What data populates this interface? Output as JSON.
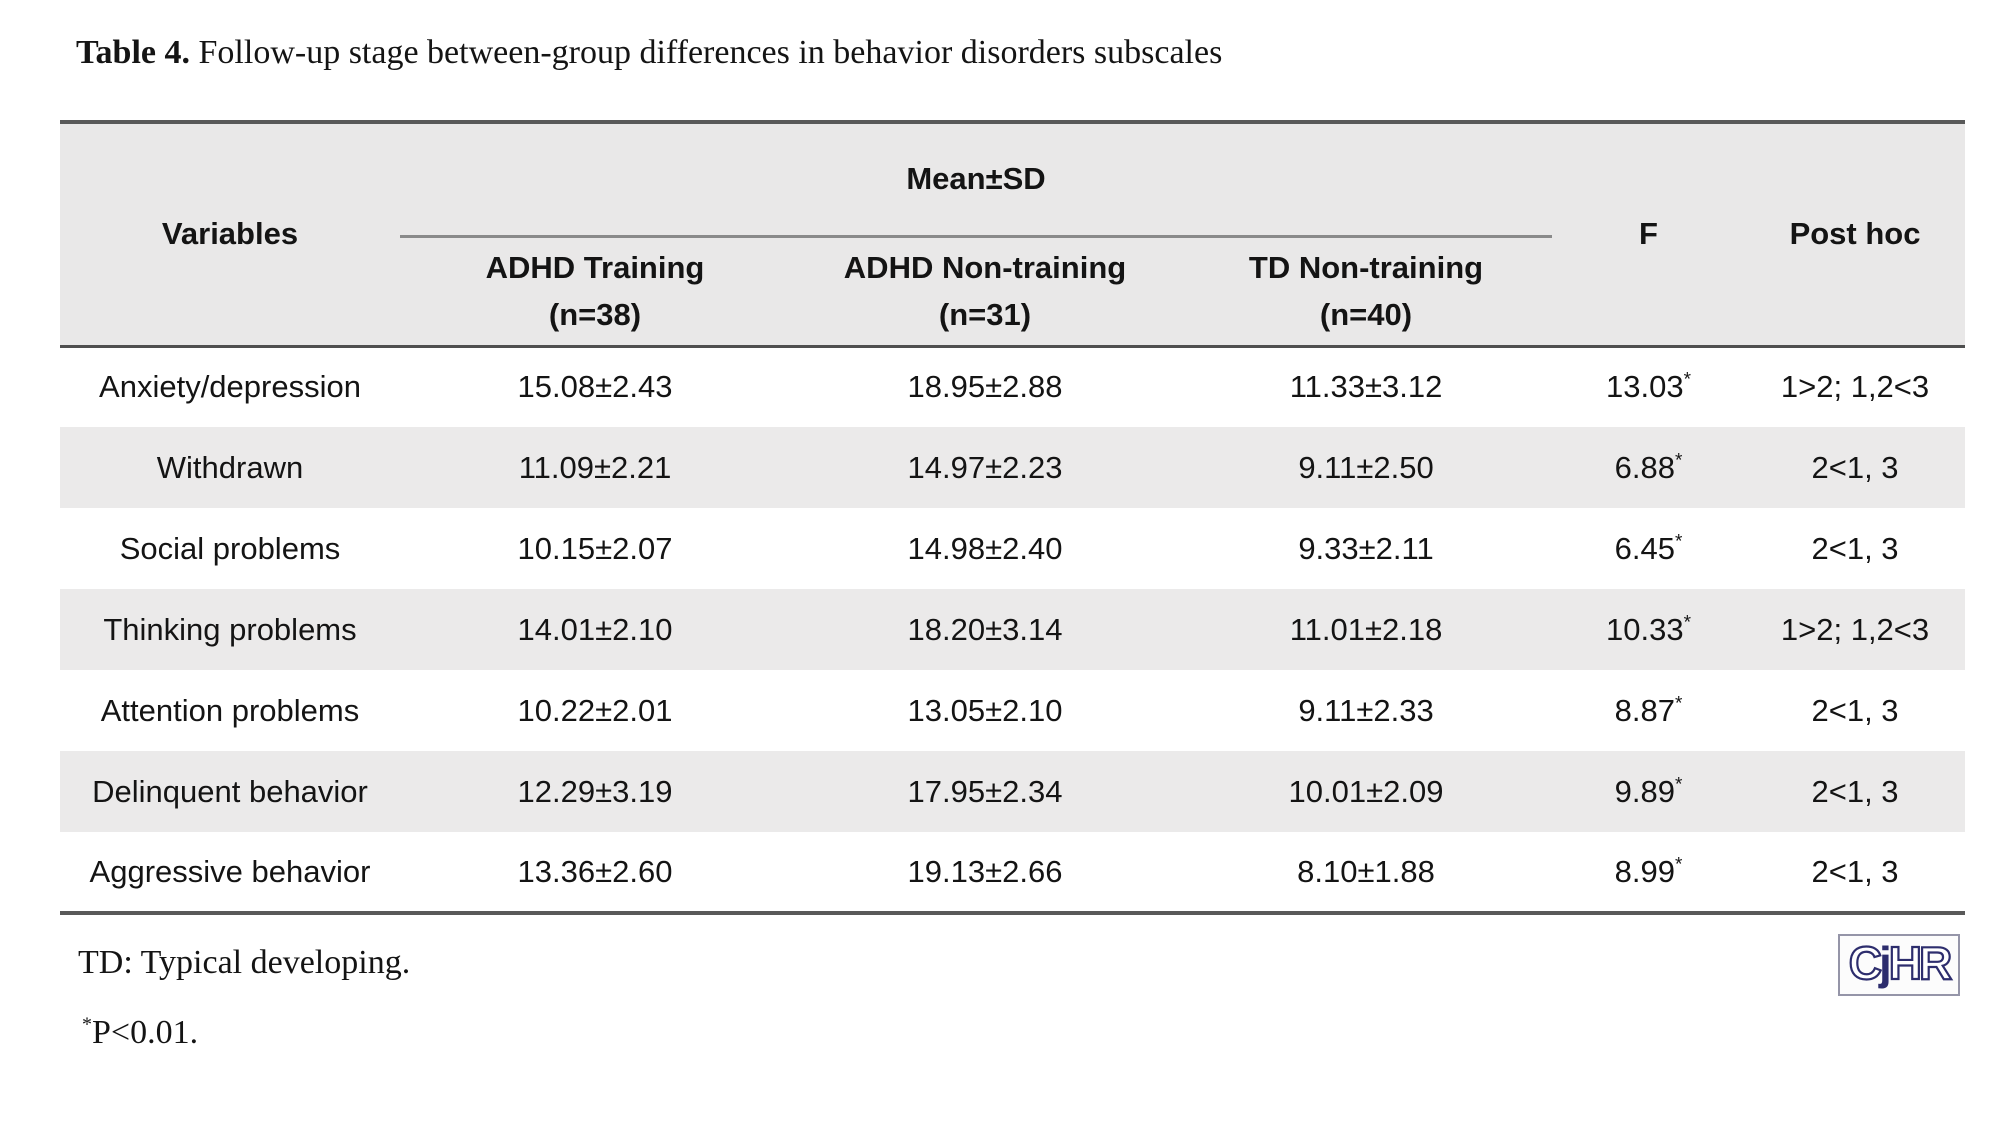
{
  "title": {
    "label": "Table 4.",
    "text": " Follow-up stage between-group differences in behavior disorders subscales"
  },
  "table": {
    "variables_header": "Variables",
    "group_header": "Mean±SD",
    "group_columns": [
      {
        "line1": "ADHD Training",
        "line2": "(n=38)"
      },
      {
        "line1": "ADHD Non-training",
        "line2": "(n=31)"
      },
      {
        "line1": "TD Non-training",
        "line2": "(n=40)"
      }
    ],
    "f_header": "F",
    "posthoc_header": "Post hoc",
    "rows": [
      {
        "variable": "Anxiety/depression",
        "adhd_training": "15.08±2.43",
        "adhd_nontraining": "18.95±2.88",
        "td_nontraining": "11.33±3.12",
        "f": "13.03",
        "f_sup": "*",
        "posthoc": "1>2; 1,2<3"
      },
      {
        "variable": "Withdrawn",
        "adhd_training": "11.09±2.21",
        "adhd_nontraining": "14.97±2.23",
        "td_nontraining": "9.11±2.50",
        "f": "6.88",
        "f_sup": "*",
        "posthoc": "2<1, 3"
      },
      {
        "variable": "Social problems",
        "adhd_training": "10.15±2.07",
        "adhd_nontraining": "14.98±2.40",
        "td_nontraining": "9.33±2.11",
        "f": "6.45",
        "f_sup": "*",
        "posthoc": "2<1, 3"
      },
      {
        "variable": "Thinking problems",
        "adhd_training": "14.01±2.10",
        "adhd_nontraining": "18.20±3.14",
        "td_nontraining": "11.01±2.18",
        "f": "10.33",
        "f_sup": "*",
        "posthoc": "1>2; 1,2<3"
      },
      {
        "variable": "Attention problems",
        "adhd_training": "10.22±2.01",
        "adhd_nontraining": "13.05±2.10",
        "td_nontraining": "9.11±2.33",
        "f": "8.87",
        "f_sup": "*",
        "posthoc": "2<1, 3"
      },
      {
        "variable": "Delinquent behavior",
        "adhd_training": "12.29±3.19",
        "adhd_nontraining": "17.95±2.34",
        "td_nontraining": "10.01±2.09",
        "f": "9.89",
        "f_sup": "*",
        "posthoc": "2<1, 3"
      },
      {
        "variable": "Aggressive behavior",
        "adhd_training": "13.36±2.60",
        "adhd_nontraining": "19.13±2.66",
        "td_nontraining": "8.10±1.88",
        "f": "8.99",
        "f_sup": "*",
        "posthoc": "2<1, 3"
      }
    ]
  },
  "footnotes": {
    "abbreviation_note": "TD: Typical developing.",
    "significance_sup": "*",
    "significance_note": "P<0.01."
  },
  "logo": {
    "letters": [
      {
        "char": "C",
        "style": "outline"
      },
      {
        "char": "j",
        "style": "solid"
      },
      {
        "char": "H",
        "style": "outline"
      },
      {
        "char": "R",
        "style": "outline"
      }
    ]
  },
  "colors": {
    "header_bg": "#e9e8e8",
    "stripe_bg": "#ebeaea",
    "heavy_border": "#595959",
    "inner_border": "#8a8a8a",
    "logo_navy": "#2d2d6d"
  }
}
